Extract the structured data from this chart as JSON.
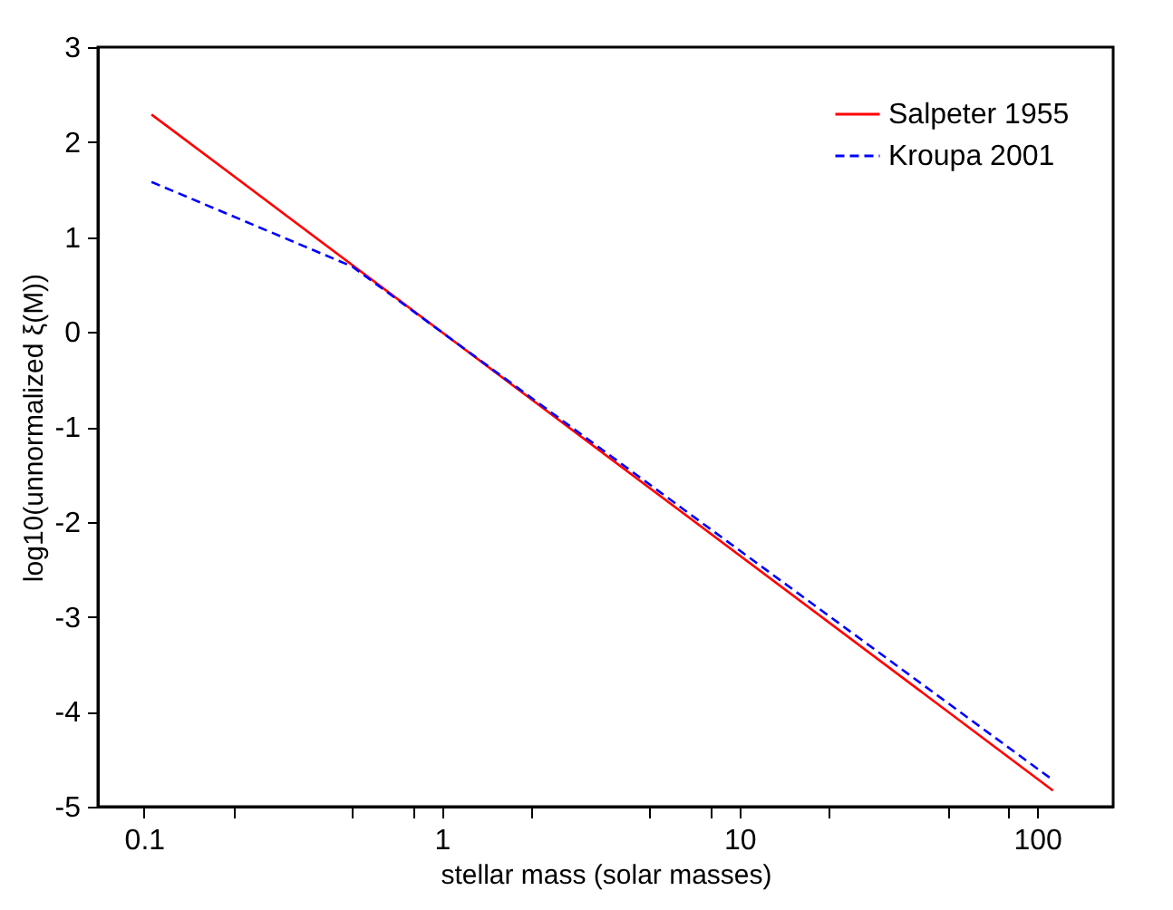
{
  "chart_data": {
    "type": "line",
    "xlabel": "stellar mass (solar masses)",
    "ylabel": "log10(unnormalized ξ(M))",
    "log": "x",
    "xlim": [
      0.07,
      180
    ],
    "xticks": [
      0.1,
      {
        "value": 0.2,
        "label": null
      },
      {
        "value": 0.5,
        "label": null
      },
      {
        "value": 0.8,
        "label": null
      },
      1,
      {
        "value": 2,
        "label": null
      },
      {
        "value": 5,
        "label": null
      },
      {
        "value": 8,
        "label": null
      },
      10,
      {
        "value": 20,
        "label": null
      },
      {
        "value": 50,
        "label": null
      },
      {
        "value": 80,
        "label": null
      },
      100
    ],
    "ylim": [
      -5,
      3
    ],
    "yticks": [
      -5,
      -4,
      -3,
      -2,
      -1,
      0,
      1,
      2,
      3
    ],
    "grid": false,
    "legend": "top right",
    "series": [
      {
        "name": "Salpeter 1955",
        "color": "#ff0000",
        "line_style": "solid",
        "x": [
          0.106,
          113
        ],
        "values": [
          2.29,
          -4.83
        ]
      },
      {
        "name": "Kroupa 2001",
        "color": "#0000ff",
        "line_style": "dashed",
        "x": [
          0.106,
          0.5,
          113
        ],
        "values": [
          1.58,
          0.69,
          -4.72
        ]
      }
    ]
  }
}
